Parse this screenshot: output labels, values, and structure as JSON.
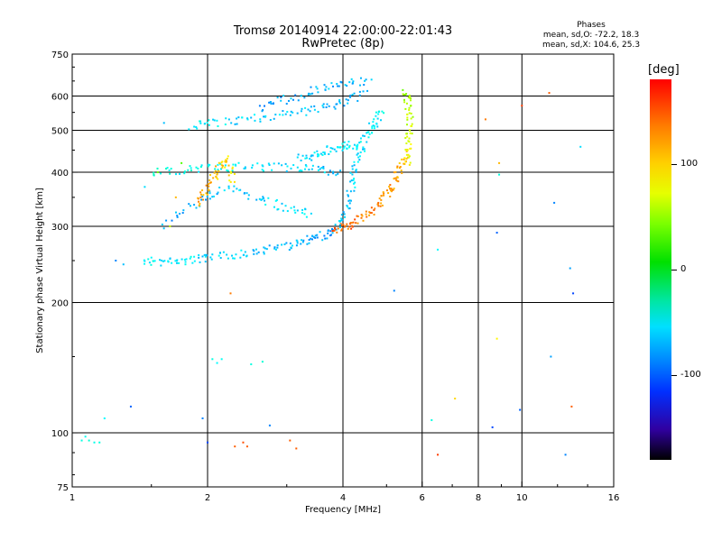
{
  "chart_data": {
    "type": "scatter",
    "title": "Tromsø 20140914 22:00:00-22:01:43",
    "subtitle": "RwPretec (8p)",
    "stats_header": "Phases",
    "stats_line1": "mean, sd,O: -72.2, 18.3",
    "stats_line2": "mean, sd,X: 104.6, 25.3",
    "xlabel": "Frequency [MHz]",
    "ylabel": "Stationary phase Virtual Height [km]",
    "xscale": "log",
    "yscale": "log",
    "xlim": [
      1,
      16
    ],
    "ylim": [
      75,
      750
    ],
    "xticks": [
      "1",
      "2",
      "4",
      "6",
      "8",
      "10",
      "16"
    ],
    "yticks": [
      "75",
      "100",
      "200",
      "300",
      "400",
      "500",
      "600",
      "750"
    ],
    "grid_x": [
      2,
      4,
      6,
      8,
      10
    ],
    "grid_y": [
      100,
      200,
      300,
      400,
      500,
      600
    ],
    "colorbar": {
      "label": "[deg]",
      "range": [
        -180,
        180
      ],
      "ticks": [
        "100",
        "0",
        "-100"
      ]
    },
    "series": [
      {
        "color": "mixed",
        "points": [
          {
            "x": 1.05,
            "y": 96,
            "c": -60
          },
          {
            "x": 1.07,
            "y": 98,
            "c": -65
          },
          {
            "x": 1.09,
            "y": 96,
            "c": -55
          },
          {
            "x": 1.12,
            "y": 95,
            "c": -62
          },
          {
            "x": 1.15,
            "y": 95,
            "c": -58
          },
          {
            "x": 1.18,
            "y": 108,
            "c": -70
          },
          {
            "x": 1.25,
            "y": 250,
            "c": -110
          },
          {
            "x": 1.35,
            "y": 115,
            "c": -120
          },
          {
            "x": 1.3,
            "y": 245,
            "c": -90
          },
          {
            "x": 1.45,
            "y": 370,
            "c": -80
          },
          {
            "x": 1.55,
            "y": 400,
            "c": 50
          },
          {
            "x": 1.6,
            "y": 520,
            "c": -90
          },
          {
            "x": 1.65,
            "y": 300,
            "c": 80
          },
          {
            "x": 1.7,
            "y": 350,
            "c": 120
          },
          {
            "x": 1.75,
            "y": 420,
            "c": 40
          },
          {
            "x": 1.95,
            "y": 108,
            "c": -110
          },
          {
            "x": 2.0,
            "y": 95,
            "c": -130
          },
          {
            "x": 2.05,
            "y": 148,
            "c": -60
          },
          {
            "x": 2.1,
            "y": 145,
            "c": -70
          },
          {
            "x": 2.15,
            "y": 148,
            "c": -65
          },
          {
            "x": 2.25,
            "y": 210,
            "c": 140
          },
          {
            "x": 2.3,
            "y": 93,
            "c": 150
          },
          {
            "x": 2.4,
            "y": 95,
            "c": 155
          },
          {
            "x": 2.45,
            "y": 93,
            "c": 150
          },
          {
            "x": 2.5,
            "y": 144,
            "c": -60
          },
          {
            "x": 2.65,
            "y": 146,
            "c": -55
          },
          {
            "x": 2.75,
            "y": 104,
            "c": -110
          },
          {
            "x": 3.05,
            "y": 96,
            "c": 150
          },
          {
            "x": 3.15,
            "y": 92,
            "c": 150
          },
          {
            "x": 5.2,
            "y": 213,
            "c": -110
          },
          {
            "x": 6.3,
            "y": 107,
            "c": -60
          },
          {
            "x": 6.5,
            "y": 89,
            "c": 160
          },
          {
            "x": 6.5,
            "y": 265,
            "c": -70
          },
          {
            "x": 7.1,
            "y": 120,
            "c": 110
          },
          {
            "x": 8.3,
            "y": 530,
            "c": 140
          },
          {
            "x": 8.6,
            "y": 103,
            "c": -130
          },
          {
            "x": 8.8,
            "y": 290,
            "c": -120
          },
          {
            "x": 8.8,
            "y": 165,
            "c": 100
          },
          {
            "x": 8.9,
            "y": 395,
            "c": -60
          },
          {
            "x": 8.9,
            "y": 420,
            "c": 120
          },
          {
            "x": 9.9,
            "y": 113,
            "c": -120
          },
          {
            "x": 10.0,
            "y": 570,
            "c": 160
          },
          {
            "x": 11.5,
            "y": 610,
            "c": 150
          },
          {
            "x": 11.6,
            "y": 150,
            "c": -100
          },
          {
            "x": 11.8,
            "y": 340,
            "c": -110
          },
          {
            "x": 12.8,
            "y": 240,
            "c": -100
          },
          {
            "x": 13.0,
            "y": 210,
            "c": -130
          },
          {
            "x": 13.5,
            "y": 458,
            "c": -80
          },
          {
            "x": 12.9,
            "y": 115,
            "c": 150
          },
          {
            "x": 12.5,
            "y": 89,
            "c": -110
          }
        ]
      }
    ],
    "traces": [
      {
        "c0": -70,
        "c1": -100,
        "pts": [
          [
            1.45,
            250
          ],
          [
            1.6,
            248
          ],
          [
            1.8,
            250
          ],
          [
            2.0,
            253
          ],
          [
            2.3,
            258
          ],
          [
            2.6,
            262
          ],
          [
            3.0,
            270
          ],
          [
            3.3,
            278
          ],
          [
            3.6,
            285
          ],
          [
            3.9,
            293
          ]
        ]
      },
      {
        "c0": 150,
        "c1": 120,
        "pts": [
          [
            3.8,
            293
          ],
          [
            4.1,
            300
          ],
          [
            4.4,
            312
          ],
          [
            4.7,
            330
          ],
          [
            5.0,
            355
          ],
          [
            5.2,
            380
          ],
          [
            5.4,
            410
          ],
          [
            5.55,
            450
          ]
        ]
      },
      {
        "c0": -90,
        "c1": -70,
        "pts": [
          [
            3.9,
            300
          ],
          [
            4.1,
            330
          ],
          [
            4.2,
            380
          ],
          [
            4.3,
            430
          ],
          [
            4.5,
            480
          ],
          [
            4.7,
            520
          ],
          [
            4.9,
            555
          ]
        ]
      },
      {
        "c0": 100,
        "c1": 60,
        "pts": [
          [
            5.55,
            420
          ],
          [
            5.6,
            470
          ],
          [
            5.65,
            520
          ],
          [
            5.6,
            580
          ],
          [
            5.5,
            620
          ]
        ]
      },
      {
        "c0": -70,
        "c1": -100,
        "pts": [
          [
            1.85,
            510
          ],
          [
            2.1,
            520
          ],
          [
            2.5,
            530
          ],
          [
            3.0,
            545
          ],
          [
            3.5,
            560
          ],
          [
            4.0,
            580
          ],
          [
            4.5,
            610
          ]
        ]
      },
      {
        "c0": -100,
        "c1": -90,
        "pts": [
          [
            2.6,
            560
          ],
          [
            3.0,
            590
          ],
          [
            3.5,
            620
          ],
          [
            4.0,
            640
          ],
          [
            4.6,
            650
          ]
        ]
      },
      {
        "c0": -60,
        "c1": -90,
        "pts": [
          [
            1.5,
            400
          ],
          [
            1.8,
            405
          ],
          [
            2.1,
            410
          ],
          [
            2.5,
            412
          ],
          [
            3.0,
            410
          ],
          [
            3.5,
            405
          ],
          [
            4.0,
            400
          ]
        ]
      },
      {
        "c0": -100,
        "c1": -70,
        "pts": [
          [
            1.6,
            300
          ],
          [
            1.9,
            340
          ],
          [
            2.2,
            370
          ],
          [
            2.6,
            350
          ],
          [
            3.0,
            330
          ],
          [
            3.4,
            320
          ]
        ]
      },
      {
        "c0": 130,
        "c1": 100,
        "pts": [
          [
            1.9,
            340
          ],
          [
            2.0,
            370
          ],
          [
            2.1,
            400
          ],
          [
            2.2,
            430
          ],
          [
            2.3,
            380
          ]
        ]
      },
      {
        "c0": -80,
        "c1": -70,
        "pts": [
          [
            3.2,
            430
          ],
          [
            3.5,
            440
          ],
          [
            3.8,
            455
          ],
          [
            4.1,
            460
          ],
          [
            4.4,
            465
          ]
        ]
      }
    ]
  }
}
